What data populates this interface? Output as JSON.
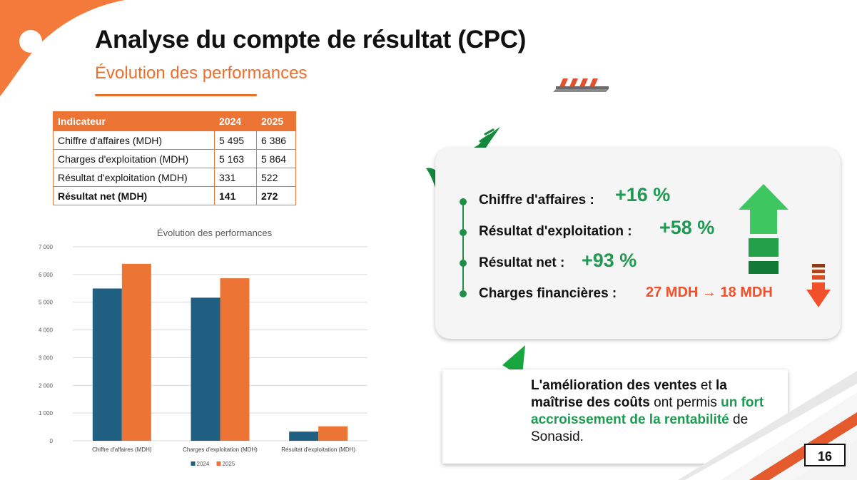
{
  "header": {
    "title": "Analyse du compte de résultat (CPC)",
    "subtitle": "Évolution des performances"
  },
  "table": {
    "headers": [
      "Indicateur",
      "2024",
      "2025"
    ],
    "rows": [
      [
        "Chiffre d'affaires (MDH)",
        "5 495",
        "6 386"
      ],
      [
        "Charges d'exploitation (MDH)",
        "5 163",
        "5 864"
      ],
      [
        "Résultat d'exploitation (MDH)",
        "331",
        "522"
      ],
      [
        "Résultat net (MDH)",
        "141",
        "272"
      ]
    ]
  },
  "chart_data": {
    "type": "bar",
    "title": "Évolution des performances",
    "categories": [
      "Chiffre d'affaires (MDH)",
      "Charges d'exploitation (MDH)",
      "Résultat d'exploitation (MDH)"
    ],
    "series": [
      {
        "name": "2024",
        "values": [
          5495,
          5163,
          331
        ]
      },
      {
        "name": "2025",
        "values": [
          6386,
          5864,
          522
        ]
      }
    ],
    "colors": [
      "#1f5f82",
      "#ec7434"
    ],
    "ylim": [
      0,
      7000
    ],
    "yticks": [
      "0",
      "1 000",
      "2 000",
      "3 000",
      "4 000",
      "5 000",
      "6 000",
      "7 000"
    ],
    "grid": true,
    "legend": "bottom"
  },
  "highlights": {
    "items": [
      {
        "label": "Chiffre d'affaires :",
        "value": "+16 %"
      },
      {
        "label": "Résultat d'exploitation :",
        "value": "+58 %"
      },
      {
        "label": "Résultat net :",
        "value": "+93 %"
      },
      {
        "label": "Charges financières :",
        "value": "27 MDH → 18 MDH"
      }
    ],
    "icons": [
      "check-icon",
      "green-up-arrow-icon",
      "red-down-arrow-icon"
    ]
  },
  "note": {
    "p1": "L'amélioration des ventes",
    "p2": " et ",
    "p3": "la maîtrise des coûts",
    "p4": " ont permis ",
    "p5": "un fort accroissement de la rentabilité",
    "p6": " de Sonasid."
  },
  "page_number": "16",
  "colors": {
    "accent": "#ec7434",
    "green": "#1f9a52",
    "red": "#f0502a",
    "navy": "#1f5f82"
  }
}
